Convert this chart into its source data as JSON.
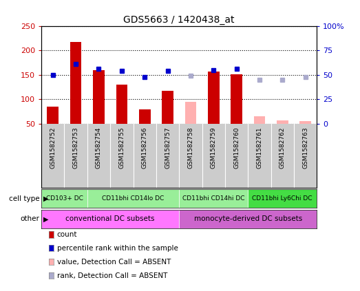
{
  "title": "GDS5663 / 1420438_at",
  "samples": [
    "GSM1582752",
    "GSM1582753",
    "GSM1582754",
    "GSM1582755",
    "GSM1582756",
    "GSM1582757",
    "GSM1582758",
    "GSM1582759",
    "GSM1582760",
    "GSM1582761",
    "GSM1582762",
    "GSM1582763"
  ],
  "counts": [
    85,
    218,
    160,
    130,
    80,
    117,
    null,
    157,
    152,
    null,
    null,
    null
  ],
  "counts_absent": [
    null,
    null,
    null,
    null,
    null,
    null,
    95,
    null,
    null,
    65,
    57,
    55
  ],
  "ranks_left": [
    150,
    172,
    163,
    158,
    145,
    158,
    null,
    160,
    162,
    null,
    null,
    null
  ],
  "ranks_absent_left": [
    null,
    null,
    null,
    null,
    null,
    null,
    148,
    null,
    null,
    140,
    140,
    146
  ],
  "ylim_left": [
    50,
    250
  ],
  "ylim_right": [
    0,
    100
  ],
  "left_ticks": [
    50,
    100,
    150,
    200,
    250
  ],
  "right_ticks": [
    0,
    25,
    50,
    75,
    100
  ],
  "right_tick_labels": [
    "0",
    "25",
    "50",
    "75",
    "100%"
  ],
  "cell_types": [
    {
      "label": "CD103+ DC",
      "start": 0,
      "end": 1,
      "color": "#99ee99"
    },
    {
      "label": "CD11bhi CD14lo DC",
      "start": 2,
      "end": 5,
      "color": "#99ee99"
    },
    {
      "label": "CD11bhi CD14hi DC",
      "start": 6,
      "end": 8,
      "color": "#99ee99"
    },
    {
      "label": "CD11bhi Ly6Chi DC",
      "start": 9,
      "end": 11,
      "color": "#44dd44"
    }
  ],
  "other_groups": [
    {
      "label": "conventional DC subsets",
      "start": 0,
      "end": 5,
      "color": "#ff77ff"
    },
    {
      "label": "monocyte-derived DC subsets",
      "start": 6,
      "end": 11,
      "color": "#cc66cc"
    }
  ],
  "bar_color": "#cc0000",
  "bar_absent_color": "#ffb0b0",
  "rank_color": "#0000cc",
  "rank_absent_color": "#aaaacc",
  "grid_color": "#000000",
  "left_label_color": "#cc0000",
  "right_label_color": "#0000cc",
  "bg_color": "#ffffff",
  "sample_bg_color": "#cccccc",
  "legend_items": [
    {
      "label": "count",
      "color": "#cc0000"
    },
    {
      "label": "percentile rank within the sample",
      "color": "#0000cc"
    },
    {
      "label": "value, Detection Call = ABSENT",
      "color": "#ffb0b0"
    },
    {
      "label": "rank, Detection Call = ABSENT",
      "color": "#aaaacc"
    }
  ]
}
